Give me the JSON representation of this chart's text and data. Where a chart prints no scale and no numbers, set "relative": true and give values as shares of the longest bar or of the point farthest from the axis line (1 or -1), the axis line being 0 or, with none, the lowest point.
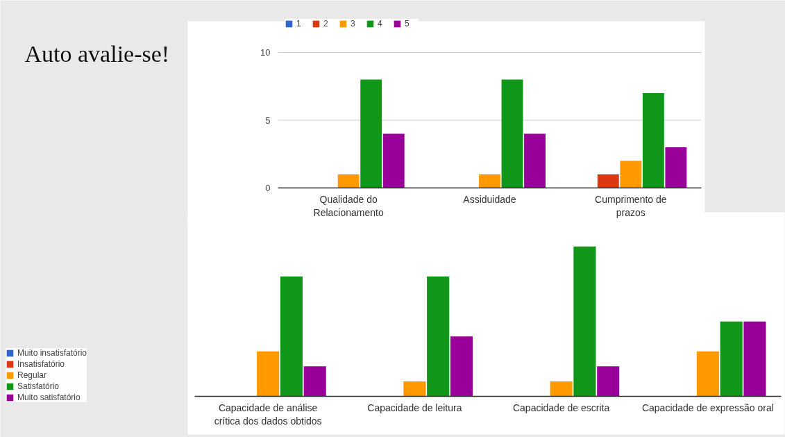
{
  "chart_data": [
    {
      "type": "bar",
      "title": "Auto avalie-se!",
      "categories": [
        "Qualidade do Relacionamento",
        "Assiduidade",
        "Cumprimento de prazos"
      ],
      "series": [
        {
          "name": "1",
          "color": "#3366cc",
          "values": [
            0,
            0,
            0
          ]
        },
        {
          "name": "2",
          "color": "#dc3912",
          "values": [
            0,
            0,
            1
          ]
        },
        {
          "name": "3",
          "color": "#ff9900",
          "values": [
            1,
            1,
            2
          ]
        },
        {
          "name": "4",
          "color": "#109618",
          "values": [
            8,
            8,
            7
          ]
        },
        {
          "name": "5",
          "color": "#990099",
          "values": [
            4,
            4,
            3
          ]
        }
      ],
      "ylim": [
        0,
        10
      ],
      "yticks": [
        0,
        5,
        10
      ],
      "grid": "y",
      "legend": "top"
    },
    {
      "type": "bar",
      "relative": true,
      "categories": [
        "Capacidade de análise crítica dos dados obtidos",
        "Capacidade de leitura",
        "Capacidade de escrita",
        "Capacidade de expressão oral"
      ],
      "series": [
        {
          "name": "Muito insatisfatório",
          "color": "#3366cc",
          "values": [
            0,
            0,
            0,
            0
          ]
        },
        {
          "name": "Insatisfatório",
          "color": "#dc3912",
          "values": [
            0,
            0,
            0,
            0
          ]
        },
        {
          "name": "Regular",
          "color": "#ff9900",
          "values": [
            0.3,
            0.1,
            0.1,
            0.3
          ]
        },
        {
          "name": "Satisfatório",
          "color": "#109618",
          "values": [
            0.8,
            0.8,
            1,
            0.5
          ]
        },
        {
          "name": "Muito satisfatório",
          "color": "#990099",
          "values": [
            0.2,
            0.4,
            0.2,
            0.5
          ]
        }
      ],
      "legend": "left"
    }
  ]
}
